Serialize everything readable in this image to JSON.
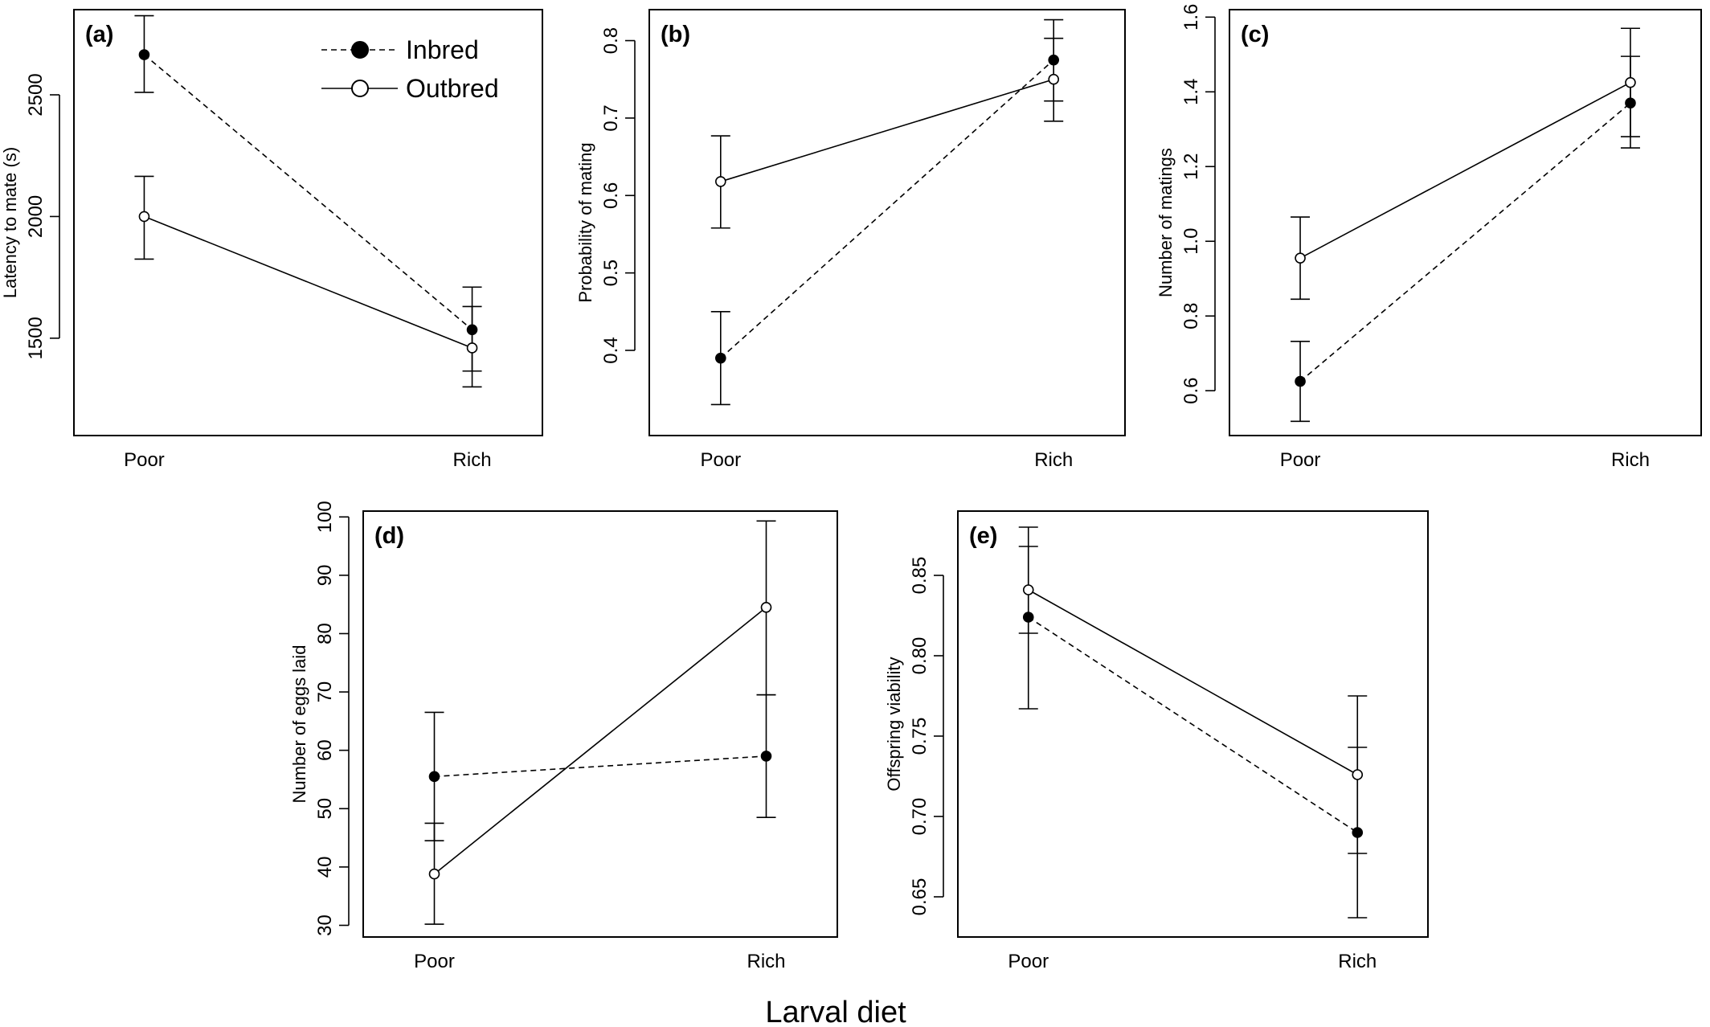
{
  "figure": {
    "shared_xlabel": "Larval diet"
  },
  "legend": {
    "items": [
      {
        "label": "Inbred",
        "style": "dashed",
        "marker": "filled"
      },
      {
        "label": "Outbred",
        "style": "solid",
        "marker": "open"
      }
    ]
  },
  "colors": {
    "line": "#000000",
    "filled_marker": "#000000",
    "open_marker_fill": "#ffffff"
  },
  "chart_data": [
    {
      "tag": "(a)",
      "type": "line",
      "ylabel": "Latency to mate (s)",
      "categories": [
        "Poor",
        "Rich"
      ],
      "ylim": [
        1100,
        2850
      ],
      "yticks": [
        1500,
        2000,
        2500
      ],
      "series": [
        {
          "name": "Inbred",
          "values": [
            2665,
            1535
          ],
          "lower": [
            2510,
            1365
          ],
          "upper": [
            2825,
            1710
          ]
        },
        {
          "name": "Outbred",
          "values": [
            2000,
            1460
          ],
          "lower": [
            1825,
            1300
          ],
          "upper": [
            2165,
            1630
          ]
        }
      ]
    },
    {
      "tag": "(b)",
      "type": "line",
      "ylabel": "Probability of mating",
      "categories": [
        "Poor",
        "Rich"
      ],
      "ylim": [
        0.29,
        0.84
      ],
      "yticks": [
        0.4,
        0.5,
        0.6,
        0.7,
        0.8
      ],
      "series": [
        {
          "name": "Inbred",
          "values": [
            0.39,
            0.775
          ],
          "lower": [
            0.33,
            0.722
          ],
          "upper": [
            0.45,
            0.827
          ]
        },
        {
          "name": "Outbred",
          "values": [
            0.618,
            0.75
          ],
          "lower": [
            0.558,
            0.696
          ],
          "upper": [
            0.677,
            0.803
          ]
        }
      ]
    },
    {
      "tag": "(c)",
      "type": "line",
      "ylabel": "Number of matings",
      "categories": [
        "Poor",
        "Rich"
      ],
      "ylim": [
        0.48,
        1.62
      ],
      "yticks": [
        0.6,
        0.8,
        1.0,
        1.2,
        1.4,
        1.6
      ],
      "series": [
        {
          "name": "Inbred",
          "values": [
            0.625,
            1.37
          ],
          "lower": [
            0.518,
            1.25
          ],
          "upper": [
            0.732,
            1.495
          ]
        },
        {
          "name": "Outbred",
          "values": [
            0.955,
            1.425
          ],
          "lower": [
            0.845,
            1.28
          ],
          "upper": [
            1.065,
            1.57
          ]
        }
      ]
    },
    {
      "tag": "(d)",
      "type": "line",
      "ylabel": "Number of eggs laid",
      "categories": [
        "Poor",
        "Rich"
      ],
      "ylim": [
        28,
        101
      ],
      "yticks": [
        30,
        40,
        50,
        60,
        70,
        80,
        90,
        100
      ],
      "series": [
        {
          "name": "Inbred",
          "values": [
            55.5,
            59
          ],
          "lower": [
            44.5,
            48.5
          ],
          "upper": [
            66.5,
            69.5
          ]
        },
        {
          "name": "Outbred",
          "values": [
            38.8,
            84.5
          ],
          "lower": [
            30.2,
            69.5
          ],
          "upper": [
            47.5,
            99.3
          ]
        }
      ]
    },
    {
      "tag": "(e)",
      "type": "line",
      "ylabel": "Offspring viability",
      "categories": [
        "Poor",
        "Rich"
      ],
      "ylim": [
        0.625,
        0.89
      ],
      "yticks": [
        0.65,
        0.7,
        0.75,
        0.8,
        0.85
      ],
      "series": [
        {
          "name": "Inbred",
          "values": [
            0.824,
            0.69
          ],
          "lower": [
            0.767,
            0.637
          ],
          "upper": [
            0.88,
            0.743
          ]
        },
        {
          "name": "Outbred",
          "values": [
            0.841,
            0.726
          ],
          "lower": [
            0.814,
            0.677
          ],
          "upper": [
            0.868,
            0.775
          ]
        }
      ]
    }
  ]
}
